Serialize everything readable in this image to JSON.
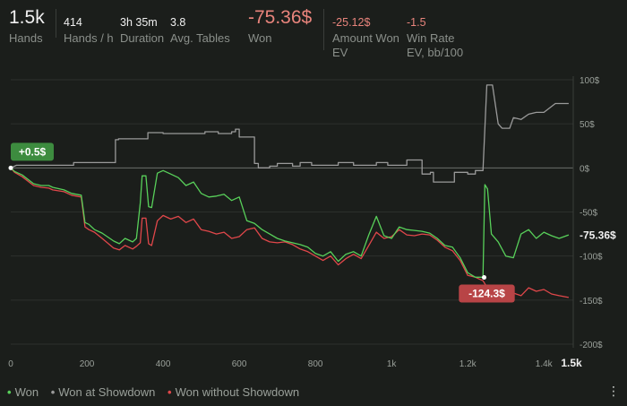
{
  "stats": [
    {
      "value": "1.5k",
      "label": "Hands",
      "size": "big"
    },
    {
      "value": "414",
      "label": "Hands / h",
      "size": "small"
    },
    {
      "value": "3h 35m",
      "label": "Duration",
      "size": "small"
    },
    {
      "value": "3.8",
      "label": "Avg. Tables",
      "size": "small"
    },
    {
      "value": "-75.36$",
      "label": "Won",
      "size": "big",
      "tone": "red"
    },
    {
      "value": "-25.12$",
      "label": "Amount Won EV",
      "size": "small",
      "tone": "red"
    },
    {
      "value": "-1.5",
      "label": "Win Rate EV, bb/100",
      "size": "small",
      "tone": "red"
    }
  ],
  "legend": [
    {
      "name": "Won",
      "color": "#58d05a"
    },
    {
      "name": "Won at Showdown",
      "color": "#9a9a9a"
    },
    {
      "name": "Won without Showdown",
      "color": "#e0474a"
    }
  ],
  "chart_data": {
    "type": "line",
    "x_ticks": [
      {
        "value": 0,
        "label": "0"
      },
      {
        "value": 200,
        "label": "200"
      },
      {
        "value": 400,
        "label": "400"
      },
      {
        "value": 600,
        "label": "600"
      },
      {
        "value": 800,
        "label": "800"
      },
      {
        "value": 1000,
        "label": "1k"
      },
      {
        "value": 1200,
        "label": "1.2k"
      },
      {
        "value": 1400,
        "label": "1.4k"
      },
      {
        "value": 1470,
        "label": "1.5k"
      }
    ],
    "y_ticks": [
      {
        "value": 100,
        "label": "100$"
      },
      {
        "value": 50,
        "label": "50$"
      },
      {
        "value": 0,
        "label": "0$"
      },
      {
        "value": -50,
        "label": "-50$"
      },
      {
        "value": -100,
        "label": "-100$"
      },
      {
        "value": -150,
        "label": "-150$"
      },
      {
        "value": -200,
        "label": "-200$"
      }
    ],
    "xlim": [
      0,
      1470
    ],
    "ylim": [
      -200,
      100
    ],
    "series": [
      {
        "name": "Won at Showdown",
        "color": "#9a9a9a",
        "x": [
          0,
          15,
          165,
          165,
          275,
          275,
          283,
          283,
          360,
          360,
          400,
          400,
          510,
          510,
          545,
          545,
          580,
          580,
          590,
          590,
          600,
          600,
          600,
          605,
          640,
          640,
          650,
          650,
          680,
          680,
          700,
          700,
          740,
          740,
          760,
          760,
          790,
          790,
          860,
          860,
          900,
          900,
          960,
          960,
          990,
          990,
          1040,
          1040,
          1080,
          1080,
          1102,
          1102,
          1110,
          1110,
          1165,
          1165,
          1200,
          1200,
          1220,
          1220,
          1240,
          1240,
          1250,
          1250,
          1265,
          1265,
          1280,
          1280,
          1290,
          1290,
          1310,
          1310,
          1320,
          1320,
          1340,
          1340,
          1360,
          1360,
          1380,
          1380,
          1400,
          1400,
          1430,
          1430,
          1465
        ],
        "y": [
          0,
          3,
          3,
          6,
          6,
          32,
          32,
          33,
          33,
          40,
          40,
          39,
          39,
          41,
          41,
          39,
          39,
          41,
          41,
          44,
          44,
          43,
          35,
          35,
          35,
          5,
          5,
          0,
          0,
          2,
          2,
          5,
          5,
          2,
          2,
          6,
          6,
          3,
          3,
          6,
          6,
          3,
          3,
          6,
          6,
          3,
          3,
          9,
          9,
          -7,
          -7,
          -5,
          -5,
          -16,
          -16,
          -5,
          -5,
          -7,
          -7,
          -3,
          -3,
          -3,
          94,
          94,
          94,
          94,
          50,
          50,
          45,
          45,
          45,
          45,
          57,
          57,
          55,
          55,
          61,
          61,
          63,
          63,
          63,
          63,
          73,
          73,
          73
        ]
      },
      {
        "name": "Won without Showdown",
        "color": "#e0474a",
        "x": [
          0,
          10,
          30,
          60,
          80,
          100,
          110,
          140,
          160,
          185,
          195,
          205,
          220,
          240,
          270,
          285,
          300,
          320,
          330,
          340,
          345,
          355,
          362,
          370,
          385,
          400,
          420,
          440,
          460,
          480,
          500,
          520,
          540,
          560,
          580,
          600,
          620,
          640,
          660,
          680,
          700,
          720,
          740,
          760,
          780,
          800,
          820,
          840,
          860,
          880,
          900,
          920,
          940,
          960,
          980,
          1000,
          1020,
          1040,
          1060,
          1080,
          1100,
          1120,
          1140,
          1160,
          1180,
          1200,
          1220,
          1240,
          1260,
          1280,
          1300,
          1320,
          1340,
          1360,
          1380,
          1400,
          1420,
          1440,
          1465
        ],
        "y": [
          0,
          -5,
          -10,
          -20,
          -22,
          -23,
          -25,
          -27,
          -31,
          -33,
          -67,
          -70,
          -73,
          -80,
          -91,
          -93,
          -88,
          -92,
          -89,
          -85,
          -57,
          -57,
          -86,
          -88,
          -60,
          -54,
          -58,
          -55,
          -62,
          -58,
          -70,
          -72,
          -75,
          -73,
          -80,
          -78,
          -70,
          -68,
          -80,
          -84,
          -85,
          -84,
          -87,
          -92,
          -95,
          -100,
          -105,
          -100,
          -110,
          -103,
          -98,
          -103,
          -88,
          -73,
          -80,
          -78,
          -70,
          -76,
          -77,
          -75,
          -76,
          -82,
          -90,
          -94,
          -105,
          -122,
          -124,
          -128,
          -142,
          -145,
          -147,
          -142,
          -145,
          -136,
          -140,
          -138,
          -143,
          -145,
          -147
        ]
      },
      {
        "name": "Won",
        "color": "#58d05a",
        "x": [
          0,
          10,
          30,
          60,
          80,
          100,
          110,
          140,
          160,
          185,
          195,
          205,
          220,
          240,
          270,
          285,
          300,
          320,
          330,
          340,
          345,
          355,
          362,
          370,
          385,
          400,
          420,
          440,
          460,
          480,
          500,
          520,
          540,
          560,
          580,
          600,
          620,
          640,
          660,
          680,
          700,
          720,
          740,
          760,
          780,
          800,
          820,
          840,
          860,
          880,
          900,
          920,
          940,
          960,
          980,
          1000,
          1020,
          1040,
          1060,
          1080,
          1100,
          1120,
          1140,
          1160,
          1180,
          1200,
          1220,
          1240,
          1245,
          1252,
          1262,
          1280,
          1300,
          1320,
          1340,
          1360,
          1380,
          1400,
          1420,
          1440,
          1465
        ],
        "y": [
          0,
          -4,
          -8,
          -18,
          -20,
          -20,
          -22,
          -25,
          -29,
          -31,
          -62,
          -64,
          -70,
          -74,
          -83,
          -86,
          -80,
          -84,
          -80,
          -40,
          -9,
          -9,
          -44,
          -45,
          -6,
          -3,
          -7,
          -11,
          -20,
          -16,
          -29,
          -33,
          -32,
          -30,
          -37,
          -33,
          -60,
          -63,
          -70,
          -75,
          -80,
          -83,
          -85,
          -87,
          -90,
          -97,
          -100,
          -95,
          -106,
          -98,
          -95,
          -100,
          -76,
          -55,
          -77,
          -80,
          -67,
          -70,
          -71,
          -72,
          -74,
          -80,
          -88,
          -90,
          -102,
          -119,
          -124,
          -124,
          -19,
          -24,
          -75,
          -84,
          -100,
          -102,
          -75,
          -70,
          -80,
          -73,
          -77,
          -80,
          -76
        ]
      }
    ],
    "annotations": [
      {
        "label": "+0.5$",
        "x": 0,
        "y": 0,
        "color": "#3d8c3f"
      },
      {
        "label": "-124.3$",
        "x": 1243,
        "y": -124.3,
        "color": "#b84446"
      },
      {
        "label": "-75.36$",
        "x": 1465,
        "y": -75.36,
        "color": "none"
      }
    ]
  }
}
